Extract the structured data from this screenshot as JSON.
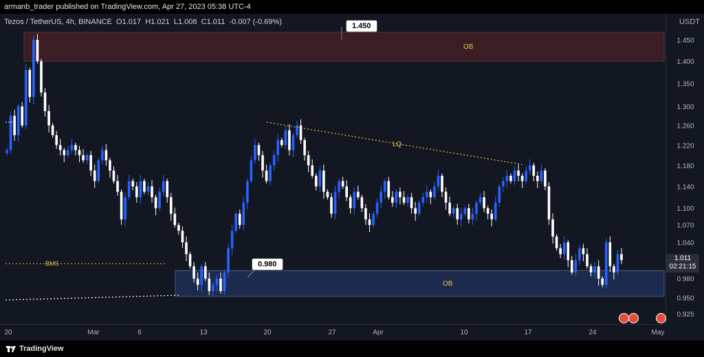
{
  "header": {
    "published_text": "armanb_trader published on TradingView.com, Apr 27, 2023 05:38 UTC-4"
  },
  "legend": {
    "symbol": "Tezos / TetherUS, 4h, BINANCE",
    "open": "O1.017",
    "high": "H1.021",
    "low": "L1.008",
    "close": "C1.011",
    "change": "-0.007 (-0.69%)"
  },
  "price_unit": "USDT",
  "current_price": {
    "value": "1.011",
    "countdown": "02:21:15"
  },
  "annotations": {
    "top_ob_label": "OB",
    "bottom_ob_label": "OB",
    "lq_label": "LQ",
    "bms_label": "BMS",
    "callout_top": "1.450",
    "callout_bottom": "0.980"
  },
  "footer": {
    "brand": "TradingView"
  },
  "colors": {
    "background": "#131722",
    "candle_up": "#2962ff",
    "candle_down": "#ffffff",
    "ob_top": "#3b1d24",
    "ob_bottom": "#1b2a4d",
    "annotation": "#e8c547"
  },
  "chart_data": {
    "type": "candlestick",
    "symbol": "Tezos / TetherUS",
    "timeframe": "4h",
    "exchange": "BINANCE",
    "y_axis": {
      "ticks": [
        1.45,
        1.4,
        1.35,
        1.3,
        1.26,
        1.22,
        1.18,
        1.14,
        1.1,
        1.07,
        1.04,
        0.98,
        0.95,
        0.925
      ],
      "scale": "log"
    },
    "x_axis": {
      "ticks": [
        "20",
        "Mar",
        "6",
        "13",
        "20",
        "27",
        "Apr",
        "10",
        "17",
        "24",
        "May"
      ]
    },
    "zones": [
      {
        "label": "OB",
        "from": 1.4,
        "to": 1.468
      },
      {
        "label": "OB",
        "from": 0.952,
        "to": 0.993
      }
    ],
    "close_path": [
      1.21,
      1.28,
      1.24,
      1.3,
      1.26,
      1.38,
      1.32,
      1.45,
      1.4,
      1.33,
      1.29,
      1.26,
      1.24,
      1.22,
      1.21,
      1.2,
      1.21,
      1.22,
      1.21,
      1.2,
      1.19,
      1.2,
      1.17,
      1.15,
      1.19,
      1.21,
      1.19,
      1.17,
      1.15,
      1.13,
      1.08,
      1.12,
      1.15,
      1.14,
      1.12,
      1.15,
      1.13,
      1.14,
      1.12,
      1.1,
      1.13,
      1.15,
      1.12,
      1.09,
      1.07,
      1.06,
      1.04,
      1.02,
      1.0,
      0.98,
      0.97,
      1.0,
      0.98,
      0.96,
      0.97,
      0.98,
      0.96,
      0.99,
      1.03,
      1.06,
      1.09,
      1.07,
      1.11,
      1.15,
      1.19,
      1.22,
      1.2,
      1.17,
      1.15,
      1.18,
      1.2,
      1.23,
      1.22,
      1.25,
      1.21,
      1.24,
      1.26,
      1.23,
      1.2,
      1.18,
      1.16,
      1.14,
      1.17,
      1.13,
      1.12,
      1.09,
      1.13,
      1.15,
      1.14,
      1.12,
      1.1,
      1.13,
      1.12,
      1.1,
      1.08,
      1.07,
      1.09,
      1.11,
      1.13,
      1.15,
      1.12,
      1.11,
      1.13,
      1.12,
      1.11,
      1.12,
      1.1,
      1.09,
      1.11,
      1.12,
      1.13,
      1.12,
      1.14,
      1.16,
      1.13,
      1.11,
      1.09,
      1.1,
      1.08,
      1.09,
      1.1,
      1.08,
      1.09,
      1.11,
      1.12,
      1.1,
      1.09,
      1.08,
      1.11,
      1.14,
      1.15,
      1.16,
      1.15,
      1.17,
      1.16,
      1.15,
      1.17,
      1.18,
      1.16,
      1.15,
      1.17,
      1.14,
      1.08,
      1.05,
      1.03,
      1.02,
      1.04,
      1.01,
      0.99,
      1.01,
      1.03,
      1.02,
      1.0,
      0.99,
      1.0,
      0.98,
      0.97,
      1.04,
      1.0,
      0.99,
      1.02,
      1.01
    ]
  }
}
